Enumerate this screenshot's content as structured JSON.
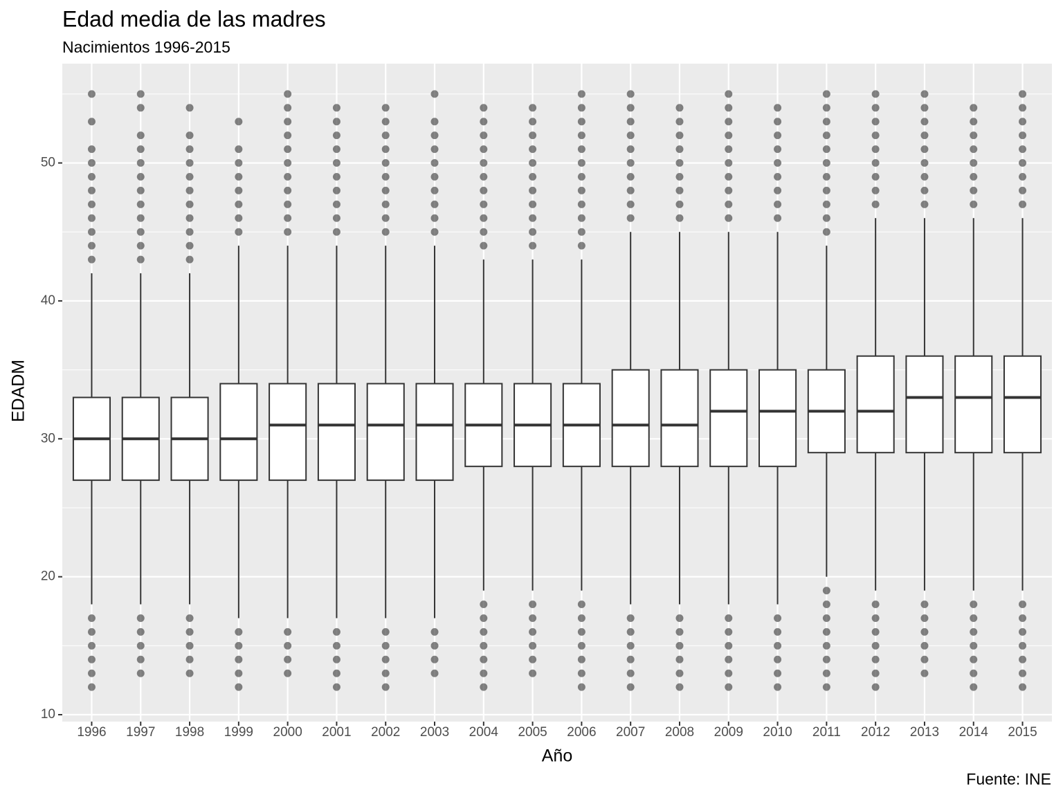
{
  "chart_data": {
    "type": "boxplot",
    "title": "Edad media de las madres",
    "subtitle": "Nacimientos 1996-2015",
    "x_label": "Año",
    "y_label": "EDADM",
    "caption": "Fuente: INE",
    "categories": [
      "1996",
      "1997",
      "1998",
      "1999",
      "2000",
      "2001",
      "2002",
      "2003",
      "2004",
      "2005",
      "2006",
      "2007",
      "2008",
      "2009",
      "2010",
      "2011",
      "2012",
      "2013",
      "2014",
      "2015"
    ],
    "whisker_low": [
      18,
      18,
      18,
      17,
      17,
      17,
      17,
      17,
      19,
      19,
      19,
      18,
      18,
      18,
      18,
      20,
      19,
      19,
      19,
      19
    ],
    "q1": [
      27,
      27,
      27,
      27,
      27,
      27,
      27,
      27,
      28,
      28,
      28,
      28,
      28,
      28,
      28,
      29,
      29,
      29,
      29,
      29
    ],
    "median": [
      30,
      30,
      30,
      30,
      31,
      31,
      31,
      31,
      31,
      31,
      31,
      31,
      31,
      32,
      32,
      32,
      32,
      33,
      33,
      33
    ],
    "q3": [
      33,
      33,
      33,
      34,
      34,
      34,
      34,
      34,
      34,
      34,
      34,
      35,
      35,
      35,
      35,
      35,
      36,
      36,
      36,
      36
    ],
    "whisker_high": [
      42,
      42,
      42,
      44,
      44,
      44,
      44,
      44,
      43,
      43,
      43,
      45,
      45,
      45,
      45,
      44,
      46,
      46,
      46,
      46
    ],
    "outliers": [
      [
        12,
        13,
        14,
        15,
        16,
        17,
        43,
        44,
        45,
        46,
        47,
        48,
        49,
        50,
        51,
        53,
        55
      ],
      [
        13,
        14,
        15,
        16,
        17,
        43,
        44,
        45,
        46,
        47,
        48,
        49,
        50,
        51,
        52,
        54,
        55
      ],
      [
        13,
        14,
        15,
        16,
        17,
        43,
        44,
        45,
        46,
        47,
        48,
        49,
        50,
        51,
        52,
        54
      ],
      [
        12,
        13,
        14,
        15,
        16,
        45,
        46,
        47,
        48,
        49,
        50,
        51,
        53
      ],
      [
        13,
        14,
        15,
        16,
        45,
        46,
        47,
        48,
        49,
        50,
        51,
        52,
        53,
        54,
        55
      ],
      [
        12,
        13,
        14,
        15,
        16,
        45,
        46,
        47,
        48,
        49,
        50,
        51,
        52,
        53,
        54
      ],
      [
        12,
        13,
        14,
        15,
        16,
        45,
        46,
        47,
        48,
        49,
        50,
        51,
        52,
        53,
        54
      ],
      [
        13,
        14,
        15,
        16,
        45,
        46,
        47,
        48,
        49,
        50,
        51,
        52,
        53,
        55
      ],
      [
        12,
        13,
        14,
        15,
        16,
        17,
        18,
        44,
        45,
        46,
        47,
        48,
        49,
        50,
        51,
        52,
        53,
        54
      ],
      [
        13,
        14,
        15,
        16,
        17,
        18,
        44,
        45,
        46,
        47,
        48,
        49,
        50,
        51,
        52,
        53,
        54
      ],
      [
        12,
        13,
        14,
        15,
        16,
        17,
        18,
        44,
        45,
        46,
        47,
        48,
        49,
        50,
        51,
        52,
        53,
        54,
        55
      ],
      [
        12,
        13,
        14,
        15,
        16,
        17,
        46,
        47,
        48,
        49,
        50,
        51,
        52,
        53,
        54,
        55
      ],
      [
        12,
        13,
        14,
        15,
        16,
        17,
        46,
        47,
        48,
        49,
        50,
        51,
        52,
        53,
        54
      ],
      [
        12,
        13,
        14,
        15,
        16,
        17,
        46,
        47,
        48,
        49,
        50,
        51,
        52,
        53,
        54,
        55
      ],
      [
        12,
        13,
        14,
        15,
        16,
        17,
        46,
        47,
        48,
        49,
        50,
        51,
        52,
        53,
        54
      ],
      [
        12,
        13,
        14,
        15,
        16,
        17,
        18,
        19,
        45,
        46,
        47,
        48,
        49,
        50,
        51,
        52,
        53,
        54,
        55
      ],
      [
        12,
        13,
        14,
        15,
        16,
        17,
        18,
        47,
        48,
        49,
        50,
        51,
        52,
        53,
        54,
        55
      ],
      [
        13,
        14,
        15,
        16,
        17,
        18,
        47,
        48,
        49,
        50,
        51,
        52,
        53,
        54,
        55
      ],
      [
        12,
        13,
        14,
        15,
        16,
        17,
        18,
        47,
        48,
        49,
        50,
        51,
        52,
        53,
        54
      ],
      [
        12,
        13,
        14,
        15,
        16,
        17,
        18,
        47,
        48,
        49,
        50,
        51,
        52,
        53,
        54,
        55
      ]
    ],
    "color": "#333333",
    "ylim": [
      9.5,
      57.2
    ],
    "yticks": [
      10,
      20,
      30,
      40,
      50
    ],
    "grid": true
  }
}
